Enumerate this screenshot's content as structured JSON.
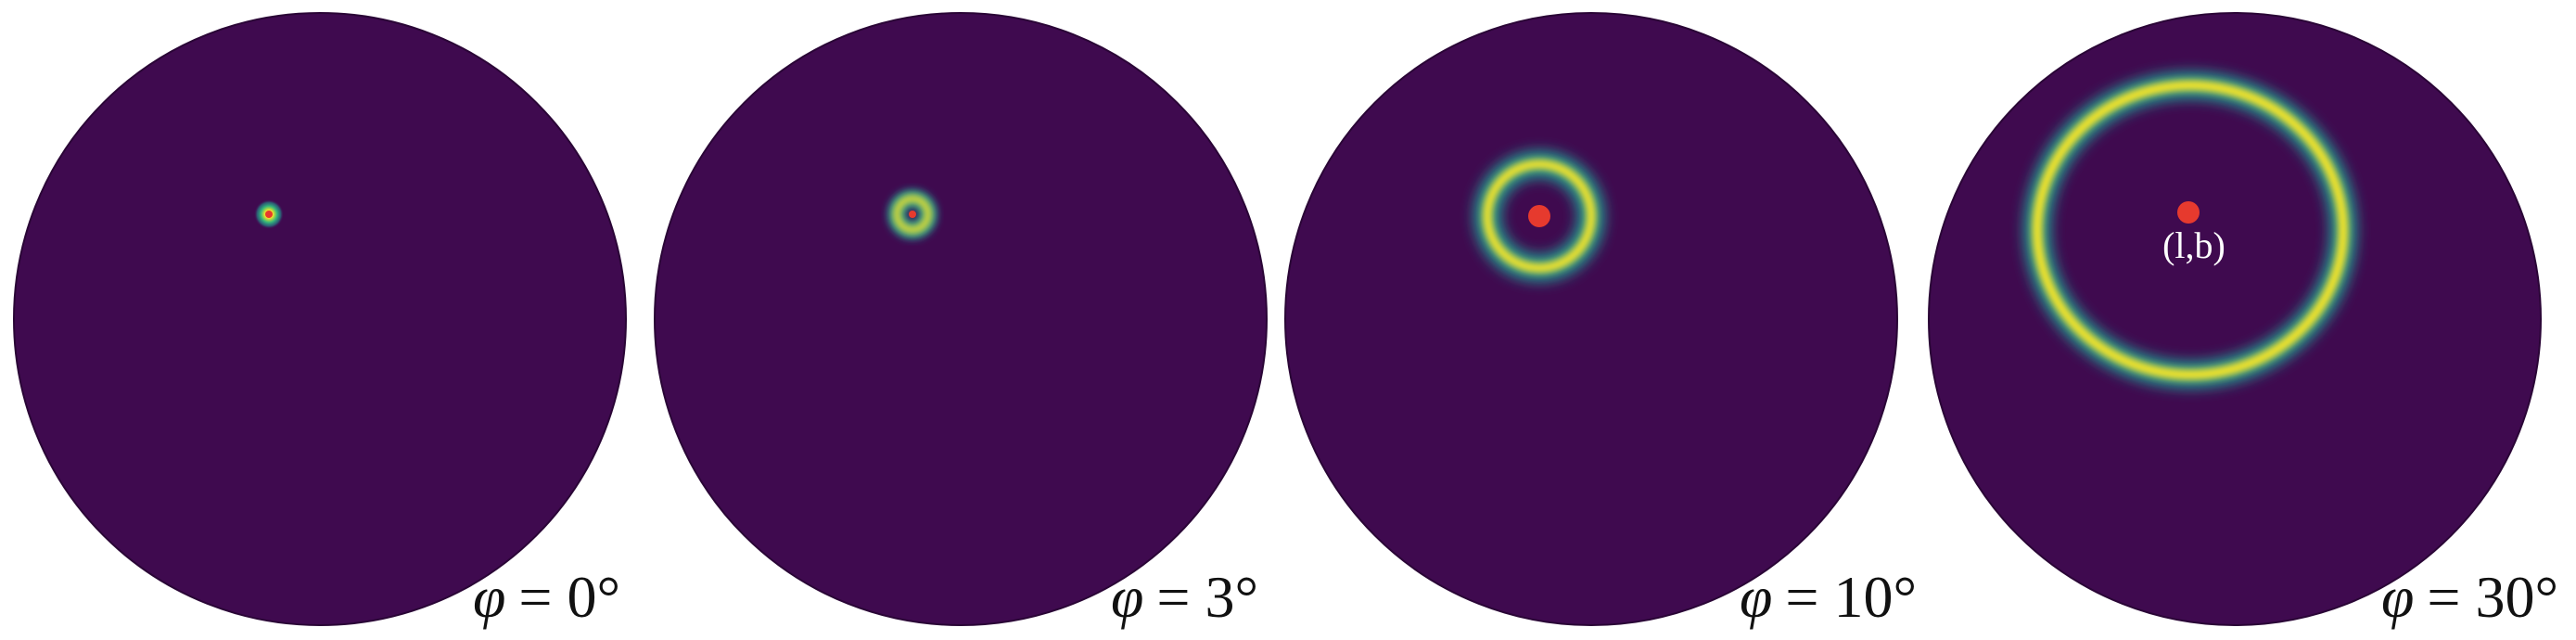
{
  "colors": {
    "disk_background": "#3f0a4f",
    "disk_outline": "#2a0536",
    "ring_gradient": [
      "#fde725",
      "#b5de2b",
      "#35b779",
      "#21918c",
      "#31688e"
    ],
    "point_marker": "#e63a2e",
    "label_text": "#111111",
    "point_label_text": "#ffffff"
  },
  "panels": [
    {
      "id": "phi-0",
      "label": "= 0°",
      "label_symbol": "φ",
      "ring_angular_radius_deg": 0,
      "show_point_label": false,
      "point_label": ""
    },
    {
      "id": "phi-3",
      "label": "= 3°",
      "label_symbol": "φ",
      "ring_angular_radius_deg": 3,
      "show_point_label": false,
      "point_label": ""
    },
    {
      "id": "phi-10",
      "label": "= 10°",
      "label_symbol": "φ",
      "ring_angular_radius_deg": 10,
      "show_point_label": false,
      "point_label": ""
    },
    {
      "id": "phi-30",
      "label": "= 30°",
      "label_symbol": "φ",
      "ring_angular_radius_deg": 30,
      "show_point_label": true,
      "point_label": "(l,b)"
    }
  ]
}
